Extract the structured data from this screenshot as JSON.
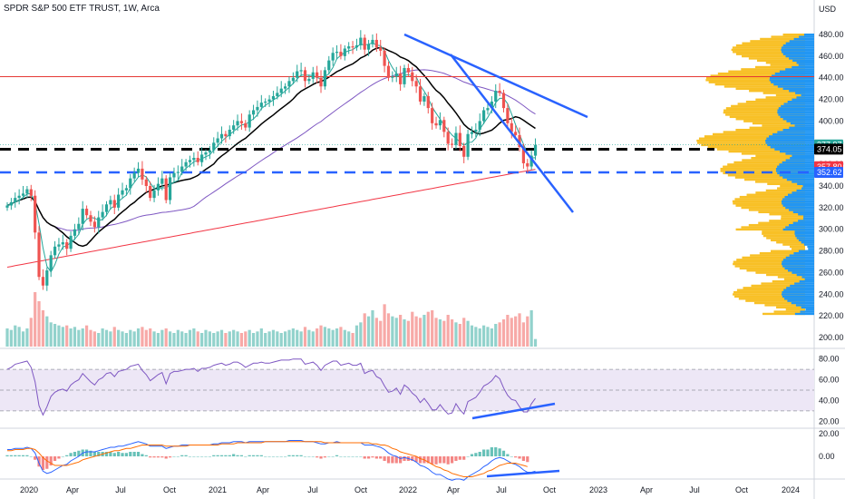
{
  "title": "SPDR S&P 500 ETF TRUST, 1W, Arca",
  "currency": "USD",
  "colors": {
    "up": "#26a69a",
    "down": "#ef5350",
    "ema_fast": "#26a69a",
    "ma_black": "#000000",
    "ma_purple": "#7e57c2",
    "ma_red": "#f23645",
    "trend": "#2962ff",
    "dashed_blue": "#2962ff",
    "dashed_black": "#000000",
    "resistance": "#e53935",
    "vp_orange": "#f7b500",
    "vp_blue": "#2196f3",
    "rsi": "#7e57c2",
    "rsi_band": "#ede7f6",
    "macd": "#2962ff",
    "signal": "#ff6d00"
  },
  "chart_data": [
    {
      "type": "candlestick",
      "title": "SPDR S&P 500 ETF TRUST, 1W, Arca",
      "ylim": [
        195,
        485
      ],
      "y_ticks": [
        480,
        460,
        440,
        420,
        400,
        380,
        360,
        340,
        320,
        300,
        280,
        260,
        240,
        220,
        200
      ],
      "x_ticks": [
        "2020",
        "Apr",
        "Jul",
        "Oct",
        "2021",
        "Apr",
        "Jul",
        "Oct",
        "2022",
        "Apr",
        "Jul",
        "Oct",
        "2023",
        "Apr",
        "Jul",
        "Oct",
        "2024"
      ],
      "price_labels": [
        {
          "value": 377.97,
          "text": "377.97",
          "color": "#26a69a"
        },
        {
          "value": 374.05,
          "text": "374.05",
          "color": "#000000"
        },
        {
          "value": 357.8,
          "text": "357.80",
          "color": "#f23645"
        },
        {
          "value": 352.62,
          "text": "352.62",
          "color": "#2962ff"
        }
      ],
      "levels": [
        {
          "name": "resistance",
          "value": 441
        },
        {
          "name": "dashed-black",
          "value": 374
        },
        {
          "name": "dashed-blue",
          "value": 352.6
        }
      ],
      "close_weekly": [
        322,
        325,
        329,
        331,
        333,
        337,
        331,
        297,
        256,
        248,
        262,
        276,
        284,
        286,
        288,
        282,
        294,
        300,
        305,
        319,
        313,
        307,
        302,
        311,
        316,
        323,
        327,
        320,
        332,
        336,
        338,
        347,
        352,
        356,
        346,
        340,
        329,
        336,
        342,
        347,
        327,
        348,
        352,
        353,
        358,
        362,
        364,
        366,
        362,
        369,
        371,
        373,
        380,
        384,
        388,
        386,
        392,
        396,
        400,
        398,
        394,
        406,
        410,
        413,
        417,
        418,
        420,
        423,
        426,
        430,
        432,
        437,
        440,
        446,
        447,
        437,
        439,
        445,
        440,
        432,
        447,
        456,
        463,
        464,
        460,
        467,
        469,
        468,
        470,
        477,
        466,
        471,
        475,
        468,
        465,
        451,
        440,
        441,
        444,
        434,
        449,
        445,
        437,
        432,
        418,
        423,
        412,
        398,
        396,
        401,
        390,
        379,
        378,
        389,
        377,
        367,
        388,
        390,
        392,
        400,
        410,
        412,
        418,
        428,
        426,
        412,
        398,
        390,
        387,
        376,
        361,
        358,
        368,
        377.97
      ]
    },
    {
      "type": "area",
      "name": "Volume",
      "note_only_shape": true,
      "values": [
        60,
        55,
        70,
        65,
        50,
        60,
        95,
        180,
        150,
        120,
        100,
        80,
        75,
        70,
        65,
        70,
        60,
        65,
        55,
        60,
        70,
        55,
        50,
        45,
        60,
        55,
        50,
        65,
        55,
        50,
        45,
        55,
        50,
        60,
        65,
        55,
        60,
        50,
        45,
        55,
        60,
        50,
        45,
        55,
        50,
        45,
        55,
        60,
        50,
        45,
        55,
        50,
        45,
        50,
        55,
        45,
        50,
        55,
        50,
        45,
        50,
        55,
        45,
        50,
        60,
        45,
        50,
        55,
        50,
        45,
        50,
        55,
        60,
        55,
        50,
        65,
        55,
        50,
        60,
        70,
        65,
        60,
        55,
        60,
        65,
        55,
        50,
        45,
        70,
        80,
        110,
        100,
        120,
        95,
        85,
        140,
        110,
        100,
        95,
        105,
        90,
        85,
        115,
        100,
        95,
        105,
        115,
        120,
        95,
        90,
        85,
        105,
        90,
        80,
        75,
        95,
        85,
        70,
        65,
        60,
        70,
        65,
        60,
        75,
        80,
        90,
        105,
        95,
        100,
        110,
        80,
        100,
        120,
        25
      ]
    },
    {
      "type": "line",
      "name": "RSI",
      "ylim": [
        15,
        85
      ],
      "y_ticks": [
        80,
        60,
        40,
        20
      ],
      "bands": [
        70,
        50,
        30
      ],
      "values": [
        70,
        72,
        75,
        76,
        77,
        78,
        72,
        58,
        35,
        26,
        34,
        44,
        48,
        50,
        51,
        49,
        55,
        58,
        60,
        66,
        62,
        58,
        55,
        60,
        62,
        66,
        67,
        63,
        68,
        69,
        70,
        73,
        74,
        75,
        69,
        65,
        59,
        62,
        65,
        67,
        56,
        66,
        68,
        68,
        69,
        70,
        70,
        71,
        68,
        71,
        71,
        72,
        74,
        75,
        76,
        74,
        75,
        77,
        77,
        75,
        72,
        74,
        76,
        76,
        77,
        76,
        76,
        77,
        78,
        79,
        79,
        79,
        80,
        80,
        80,
        75,
        76,
        77,
        74,
        69,
        74,
        76,
        78,
        78,
        74,
        75,
        76,
        74,
        74,
        76,
        66,
        68,
        69,
        63,
        61,
        54,
        48,
        49,
        52,
        46,
        55,
        52,
        47,
        44,
        38,
        42,
        37,
        31,
        31,
        36,
        31,
        27,
        28,
        37,
        31,
        27,
        39,
        41,
        43,
        48,
        54,
        56,
        59,
        64,
        61,
        52,
        45,
        41,
        40,
        34,
        29,
        29,
        37,
        42
      ]
    },
    {
      "type": "bar",
      "name": "MACD",
      "ylim": [
        -32,
        28
      ],
      "y_ticks": [
        20,
        0
      ],
      "macd": [
        6,
        6,
        7,
        7,
        7,
        8,
        7,
        3,
        -6,
        -13,
        -15,
        -14,
        -12,
        -10,
        -8,
        -7,
        -4,
        -2,
        0,
        3,
        4,
        4,
        4,
        5,
        6,
        7,
        8,
        8,
        9,
        9,
        10,
        11,
        12,
        13,
        12,
        11,
        9,
        9,
        9,
        9,
        7,
        8,
        9,
        9,
        10,
        10,
        10,
        10,
        10,
        10,
        10,
        10,
        11,
        11,
        12,
        12,
        12,
        13,
        13,
        13,
        12,
        13,
        13,
        13,
        13,
        13,
        13,
        13,
        13,
        13,
        13,
        14,
        14,
        14,
        14,
        13,
        13,
        13,
        12,
        11,
        11,
        12,
        12,
        13,
        12,
        12,
        12,
        12,
        12,
        12,
        10,
        10,
        10,
        9,
        8,
        6,
        3,
        1,
        0,
        -2,
        -1,
        -2,
        -3,
        -5,
        -8,
        -9,
        -11,
        -14,
        -16,
        -16,
        -18,
        -20,
        -21,
        -20,
        -20,
        -21,
        -18,
        -16,
        -14,
        -12,
        -9,
        -7,
        -4,
        -2,
        -1,
        -2,
        -4,
        -6,
        -7,
        -9,
        -12,
        -14,
        -14,
        -13
      ],
      "signal": [
        5,
        5,
        6,
        6,
        6,
        7,
        7,
        6,
        3,
        -1,
        -4,
        -6,
        -8,
        -8,
        -8,
        -8,
        -7,
        -6,
        -5,
        -3,
        -2,
        -1,
        0,
        1,
        2,
        3,
        4,
        5,
        5,
        6,
        7,
        7,
        8,
        9,
        10,
        10,
        10,
        10,
        10,
        10,
        9,
        9,
        9,
        9,
        9,
        9,
        10,
        10,
        10,
        10,
        10,
        10,
        10,
        10,
        11,
        11,
        11,
        11,
        12,
        12,
        12,
        12,
        12,
        12,
        12,
        13,
        13,
        13,
        13,
        13,
        13,
        13,
        13,
        13,
        13,
        13,
        13,
        13,
        13,
        13,
        12,
        12,
        12,
        12,
        12,
        12,
        12,
        12,
        12,
        12,
        12,
        12,
        11,
        11,
        10,
        10,
        9,
        7,
        6,
        4,
        3,
        2,
        1,
        0,
        -2,
        -3,
        -5,
        -7,
        -9,
        -10,
        -12,
        -13,
        -15,
        -16,
        -17,
        -18,
        -18,
        -18,
        -17,
        -16,
        -15,
        -13,
        -12,
        -10,
        -8,
        -7,
        -6,
        -6,
        -6,
        -7,
        -8,
        -9
      ]
    }
  ]
}
